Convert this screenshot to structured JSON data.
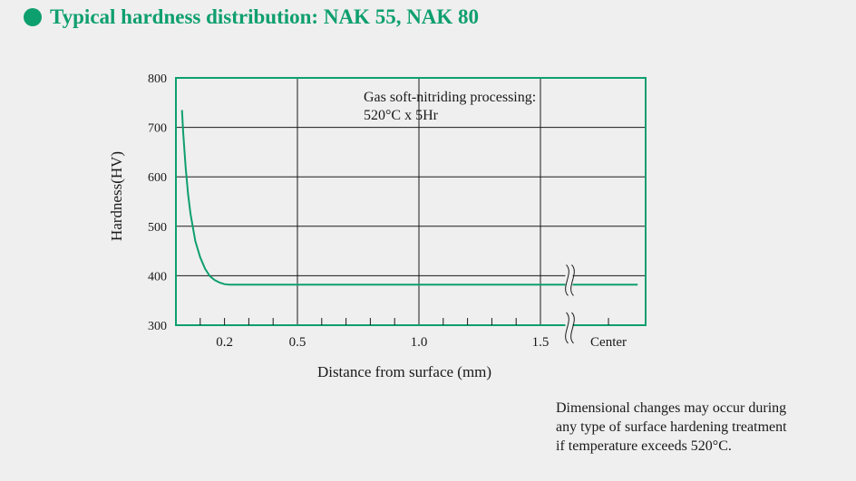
{
  "header": {
    "title": "Typical hardness distribution: NAK 55, NAK 80",
    "accent_color": "#0e9f6e"
  },
  "chart_data": {
    "type": "line",
    "title": "Typical hardness distribution: NAK 55, NAK 80",
    "xlabel": "Distance from surface (mm)",
    "ylabel": "Hardness(HV)",
    "ylim": [
      300,
      800
    ],
    "xlim": [
      0,
      1.9
    ],
    "grid": true,
    "line_color": "#0e9f6e",
    "frame_color": "#0e9f6e",
    "y_ticks": [
      "300",
      "400",
      "500",
      "600",
      "700",
      "800"
    ],
    "x_tick_labels": [
      {
        "x": 0.2,
        "label": "0.2"
      },
      {
        "x": 0.5,
        "label": "0.5"
      },
      {
        "x": 1.0,
        "label": "1.0"
      },
      {
        "x": 1.5,
        "label": "1.5"
      },
      {
        "x": 1.78,
        "label": "Center"
      }
    ],
    "x_minor_ticks": [
      0.1,
      0.2,
      0.3,
      0.4,
      0.6,
      0.7,
      0.8,
      0.9,
      1.1,
      1.2,
      1.3,
      1.4,
      1.78
    ],
    "x_grid": [
      0.5,
      1.0,
      1.5
    ],
    "axis_break_x": 1.61,
    "annotation": [
      "Gas soft-nitriding processing:",
      "520°C x 5Hr"
    ],
    "series": [
      {
        "x": [
          0.025,
          0.03,
          0.04,
          0.05,
          0.06,
          0.08,
          0.1,
          0.12,
          0.14,
          0.16,
          0.18,
          0.2,
          0.22,
          0.3,
          0.5,
          1.0,
          1.5,
          1.9
        ],
        "y": [
          735,
          690,
          620,
          565,
          525,
          470,
          437,
          414,
          399,
          391,
          386,
          383,
          382,
          382,
          382,
          382,
          382,
          382
        ]
      }
    ]
  },
  "note": [
    "Dimensional changes may occur during",
    "any type of surface hardening treatment",
    "if temperature exceeds 520°C."
  ]
}
